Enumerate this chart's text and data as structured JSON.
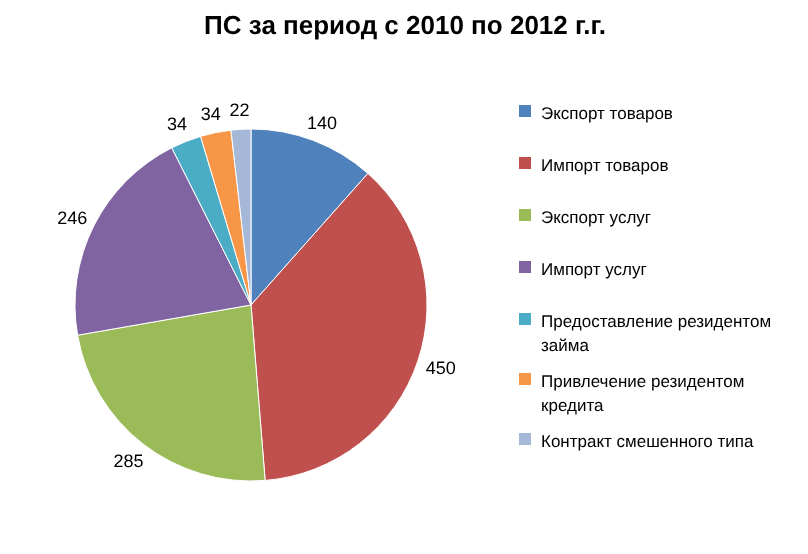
{
  "chart_data": {
    "type": "pie",
    "title": "ПС за период с 2010 по 2012 г.г.",
    "categories": [
      "Экспорт товаров",
      "Импорт товаров",
      "Экспорт услуг",
      "Импорт услуг",
      "Предоставление резидентом займа",
      "Привлечение резидентом кредита",
      "Контракт смешенного типа"
    ],
    "values": [
      140,
      450,
      285,
      246,
      34,
      34,
      22
    ],
    "colors": [
      "#4f81bd",
      "#c0504d",
      "#9bbb59",
      "#8064a2",
      "#4bacc6",
      "#f79646",
      "#a5b8d8"
    ],
    "data_labels": true,
    "legend": "right"
  }
}
